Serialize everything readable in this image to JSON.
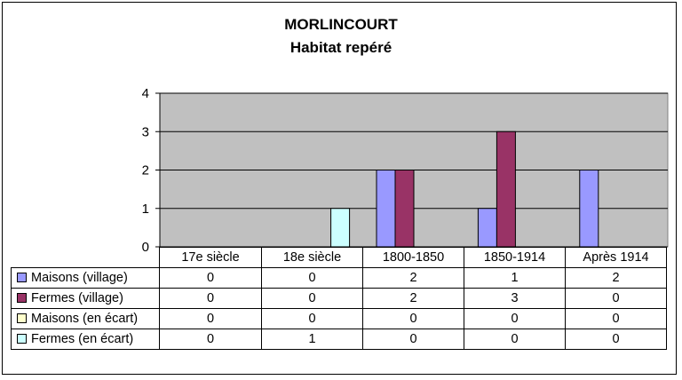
{
  "chart_data": {
    "type": "bar",
    "title": "MORLINCOURT",
    "subtitle": "Habitat repéré",
    "categories": [
      "17e siècle",
      "18e siècle",
      "1800-1850",
      "1850-1914",
      "Après 1914"
    ],
    "ylim": [
      0,
      4
    ],
    "yticks": [
      "0",
      "1",
      "2",
      "3",
      "4"
    ],
    "grid": true,
    "legend": "data-table",
    "series": [
      {
        "name": "Maisons (village)",
        "color": "#9999ff",
        "values": [
          0,
          0,
          2,
          1,
          2
        ]
      },
      {
        "name": "Fermes (village)",
        "color": "#993366",
        "values": [
          0,
          0,
          2,
          3,
          0
        ]
      },
      {
        "name": "Maisons (en écart)",
        "color": "#ffffcc",
        "values": [
          0,
          0,
          0,
          0,
          0
        ]
      },
      {
        "name": "Fermes (en écart)",
        "color": "#ccffff",
        "values": [
          0,
          1,
          0,
          0,
          0
        ]
      }
    ],
    "table": [
      [
        "0",
        "0",
        "2",
        "1",
        "2"
      ],
      [
        "0",
        "0",
        "2",
        "3",
        "0"
      ],
      [
        "0",
        "0",
        "0",
        "0",
        "0"
      ],
      [
        "0",
        "1",
        "0",
        "0",
        "0"
      ]
    ]
  },
  "colors": {
    "plot_background": "#c0c0c0"
  }
}
